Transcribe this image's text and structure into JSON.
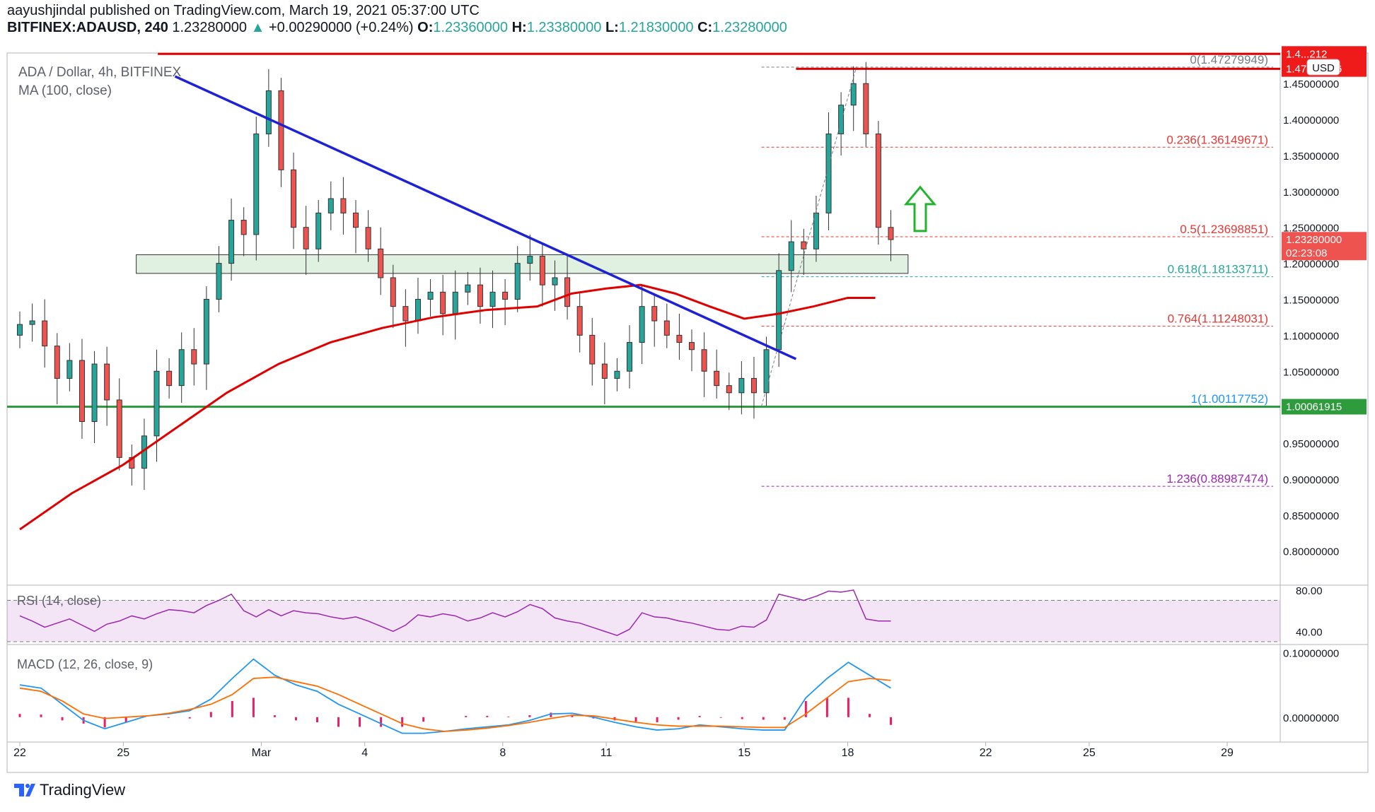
{
  "header": {
    "line1": "aayushjindal published on TradingView.com, March 19, 2021 05:37:00 UTC",
    "symbol": "BITFINEX:ADAUSD, 240",
    "price": "1.23280000",
    "change": "+0.00290000 (+0.24%)",
    "o_label": "O:",
    "o_value": "1.23360000",
    "h_label": "H:",
    "h_value": "1.23380000",
    "l_label": "L:",
    "l_value": "1.21830000",
    "c_label": "C:",
    "c_value": "1.23280000"
  },
  "footer": {
    "brand": "TradingView"
  },
  "colors": {
    "up": "#26a69a",
    "down": "#ef5350",
    "ma": "#e00000",
    "trend": "#1e22d6",
    "support": "#2e9b3c",
    "rsi": "#9c27b0",
    "macd": "#2196f3",
    "signal": "#ff6d00",
    "hist": "#e91e63",
    "zone": "#c8e6c9"
  },
  "chart_data": [
    {
      "type": "candlestick",
      "title": "ADA / Dollar, 4h, BITFINEX",
      "legend": "MA (100, close)",
      "currency_label": "USD",
      "x_tick_labels": [
        "22",
        "25",
        "Mar",
        "4",
        "8",
        "11",
        "15",
        "18",
        "22",
        "25",
        "29"
      ],
      "x_tick_dates": [
        "2021-02-22",
        "2021-02-25",
        "2021-03-01",
        "2021-03-04",
        "2021-03-08",
        "2021-03-11",
        "2021-03-15",
        "2021-03-18",
        "2021-03-22",
        "2021-03-25",
        "2021-03-29"
      ],
      "y_tick_labels": [
        "1.45000000",
        "1.40000000",
        "1.35000000",
        "1.30000000",
        "1.25000000",
        "1.20000000",
        "1.15000000",
        "1.10000000",
        "1.05000000",
        "1.00000000",
        "0.95000000",
        "0.90000000",
        "0.85000000",
        "0.80000000"
      ],
      "ylim": [
        0.78,
        1.52
      ],
      "price_tags": [
        {
          "label": "1.4...212",
          "value": 1.4912
        },
        {
          "label": "1.47023096",
          "value": 1.47023
        },
        {
          "label": "1.23280000",
          "sub": "02:23:08",
          "value": 1.2328
        },
        {
          "label": "1.00061915",
          "value": 1.00062
        }
      ],
      "fibonacci": [
        {
          "label": "0(1.47279949)",
          "value": 1.4728
        },
        {
          "label": "0.236(1.36149671)",
          "value": 1.3615
        },
        {
          "label": "0.5(1.23698851)",
          "value": 1.237
        },
        {
          "label": "0.618(1.18133711)",
          "value": 1.1813
        },
        {
          "label": "0.764(1.11248031)",
          "value": 1.1125
        },
        {
          "label": "1(1.00117752)",
          "value": 1.0012
        },
        {
          "label": "1.236(0.88987474)",
          "value": 0.8899
        }
      ],
      "resistance_level": 1.4912,
      "support_level": 1.0006,
      "zone": [
        1.186,
        1.212
      ],
      "trend_line": [
        [
          "2021-02-26T12:00",
          1.46
        ],
        [
          "2021-03-16T12:00",
          1.067
        ]
      ],
      "ohlc_close": [
        1.115,
        1.12,
        1.085,
        1.04,
        1.065,
        0.98,
        1.06,
        1.01,
        0.93,
        0.915,
        0.96,
        1.05,
        1.03,
        1.08,
        1.06,
        1.15,
        1.2,
        1.26,
        1.24,
        1.38,
        1.44,
        1.33,
        1.25,
        1.22,
        1.27,
        1.29,
        1.27,
        1.25,
        1.22,
        1.18,
        1.14,
        1.12,
        1.15,
        1.16,
        1.13,
        1.16,
        1.17,
        1.14,
        1.16,
        1.15,
        1.2,
        1.21,
        1.17,
        1.18,
        1.14,
        1.1,
        1.06,
        1.04,
        1.05,
        1.09,
        1.14,
        1.12,
        1.1,
        1.09,
        1.08,
        1.05,
        1.03,
        1.02,
        1.04,
        1.02,
        1.08,
        1.19,
        1.23,
        1.22,
        1.27,
        1.38,
        1.42,
        1.45,
        1.38,
        1.25,
        1.233
      ],
      "ma100": [
        [
          0,
          0.83
        ],
        [
          1.5,
          0.88
        ],
        [
          3,
          0.92
        ],
        [
          4.5,
          0.97
        ],
        [
          6,
          1.02
        ],
        [
          7.5,
          1.06
        ],
        [
          9,
          1.09
        ],
        [
          10.5,
          1.11
        ],
        [
          12,
          1.125
        ],
        [
          13.5,
          1.135
        ],
        [
          15,
          1.14
        ],
        [
          16,
          1.158
        ],
        [
          17,
          1.165
        ],
        [
          18,
          1.17
        ],
        [
          19,
          1.158
        ],
        [
          20,
          1.14
        ],
        [
          21,
          1.123
        ],
        [
          22,
          1.13
        ],
        [
          23,
          1.14
        ],
        [
          24,
          1.152
        ],
        [
          24.8,
          1.152
        ]
      ]
    },
    {
      "type": "line",
      "title": "RSI (14, close)",
      "y_tick_labels": [
        "80.00",
        "40.00"
      ],
      "band": [
        30,
        70
      ],
      "ylim": [
        30,
        82
      ],
      "values": [
        55,
        50,
        44,
        48,
        52,
        46,
        40,
        47,
        50,
        55,
        52,
        57,
        61,
        60,
        58,
        65,
        70,
        76,
        60,
        54,
        61,
        55,
        60,
        58,
        57,
        54,
        52,
        54,
        50,
        45,
        40,
        46,
        56,
        54,
        57,
        55,
        50,
        53,
        58,
        54,
        59,
        66,
        62,
        53,
        50,
        48,
        44,
        40,
        36,
        42,
        58,
        54,
        53,
        50,
        48,
        45,
        42,
        41,
        45,
        44,
        51,
        76,
        73,
        70,
        74,
        79,
        78,
        80,
        52,
        50,
        50
      ]
    },
    {
      "type": "line",
      "title": "MACD (12, 26, close, 9)",
      "y_tick_labels": [
        "0.10000000",
        "0.00000000"
      ],
      "ylim": [
        -0.032,
        0.106
      ],
      "series": [
        {
          "values": [
            0.05,
            0.045,
            0.02,
            -0.005,
            -0.018,
            -0.008,
            0.002,
            0.005,
            0.01,
            0.028,
            0.06,
            0.09,
            0.065,
            0.05,
            0.04,
            0.02,
            0.005,
            -0.01,
            -0.025,
            -0.025,
            -0.022,
            -0.018,
            -0.015,
            -0.012,
            -0.005,
            0.005,
            0.006,
            0.0,
            -0.008,
            -0.015,
            -0.02,
            -0.018,
            -0.012,
            -0.015,
            -0.018,
            -0.02,
            -0.02,
            0.03,
            0.06,
            0.085,
            0.065,
            0.045
          ]
        },
        {
          "values": [
            0.045,
            0.04,
            0.025,
            0.005,
            -0.002,
            0.0,
            0.002,
            0.006,
            0.012,
            0.02,
            0.035,
            0.06,
            0.062,
            0.055,
            0.048,
            0.035,
            0.02,
            0.005,
            -0.01,
            -0.018,
            -0.022,
            -0.02,
            -0.017,
            -0.013,
            -0.008,
            -0.002,
            0.003,
            0.002,
            -0.003,
            -0.008,
            -0.012,
            -0.014,
            -0.014,
            -0.014,
            -0.015,
            -0.016,
            -0.016,
            0.005,
            0.03,
            0.055,
            0.06,
            0.057
          ]
        }
      ],
      "histogram": [
        0.005,
        0.004,
        -0.005,
        -0.01,
        -0.016,
        -0.008,
        0.0,
        -0.001,
        -0.002,
        0.008,
        0.025,
        0.03,
        0.003,
        -0.005,
        -0.008,
        -0.015,
        -0.015,
        -0.015,
        -0.015,
        -0.007,
        0.0,
        0.002,
        0.002,
        0.001,
        0.003,
        0.007,
        0.003,
        -0.002,
        -0.005,
        -0.007,
        -0.008,
        -0.004,
        0.002,
        -0.001,
        -0.003,
        -0.004,
        -0.004,
        0.025,
        0.03,
        0.03,
        0.005,
        -0.012
      ]
    }
  ]
}
